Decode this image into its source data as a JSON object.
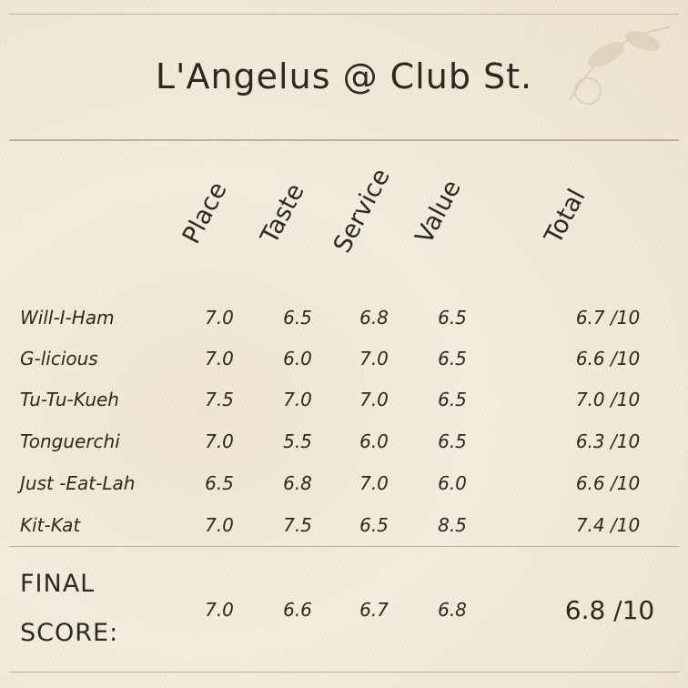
{
  "title": "L'Angelus @ Club St.",
  "chart_data": {
    "type": "table",
    "columns": [
      "Place",
      "Taste",
      "Service",
      "Value",
      "Total"
    ],
    "rows": [
      {
        "name": "Will-I-Ham",
        "values": [
          "7.0",
          "6.5",
          "6.8",
          "6.5"
        ],
        "total": "6.7 /10"
      },
      {
        "name": "G-licious",
        "values": [
          "7.0",
          "6.0",
          "7.0",
          "6.5"
        ],
        "total": "6.6 /10"
      },
      {
        "name": "Tu-Tu-Kueh",
        "values": [
          "7.5",
          "7.0",
          "7.0",
          "6.5"
        ],
        "total": "7.0 /10"
      },
      {
        "name": "Tonguerchi",
        "values": [
          "7.0",
          "5.5",
          "6.0",
          "6.5"
        ],
        "total": "6.3 /10"
      },
      {
        "name": "Just -Eat-Lah",
        "values": [
          "6.5",
          "6.8",
          "7.0",
          "6.0"
        ],
        "total": "6.6 /10"
      },
      {
        "name": "Kit-Kat",
        "values": [
          "7.0",
          "7.5",
          "6.5",
          "8.5"
        ],
        "total": "7.4 /10"
      }
    ],
    "final": {
      "label_line1": "FINAL",
      "label_line2": "SCORE:",
      "values": [
        "7.0",
        "6.6",
        "6.7",
        "6.8"
      ],
      "total": "6.8 /10"
    }
  }
}
